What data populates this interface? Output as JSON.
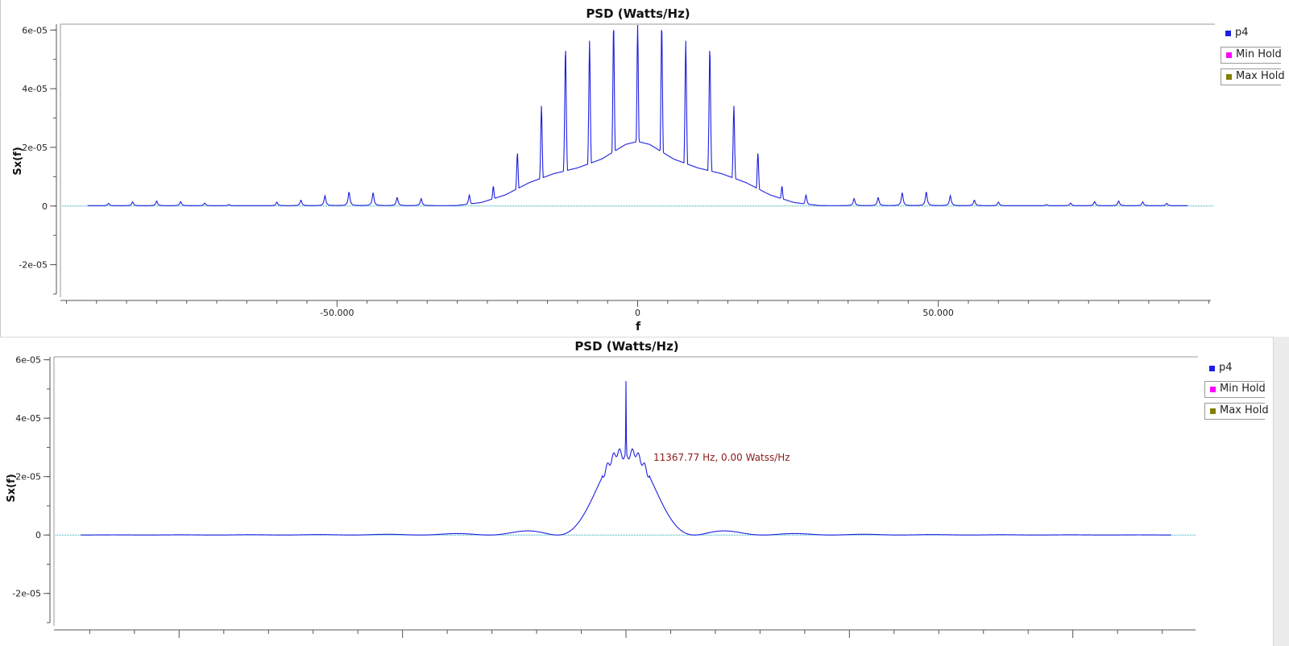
{
  "colors": {
    "trace": "#1f1fe0",
    "baseline": "#1aa8b4",
    "min_hold": "#ff00ff",
    "max_hold": "#808000",
    "marker_text": "#8b1a1a",
    "axis": "#555555"
  },
  "chart_data": [
    {
      "type": "line",
      "title": "PSD (Watts/Hz)",
      "xlabel": "f",
      "ylabel": "Sx(f)",
      "xlim": [
        -96,
        96
      ],
      "ylim": [
        -3e-05,
        6.2e-05
      ],
      "yticks": [
        -2e-05,
        0,
        2e-05,
        4e-05,
        6e-05
      ],
      "ytick_labels": [
        "-2e-05",
        "0",
        "2e-05",
        "4e-05",
        "6e-05"
      ],
      "xticks": [
        -50,
        0,
        50
      ],
      "xtick_labels": [
        "-50.000",
        "0",
        "50.000"
      ],
      "legend": [
        "p4",
        "Min Hold",
        "Max Hold"
      ],
      "legend_position": "right",
      "series": [
        {
          "name": "p4",
          "kind": "comb",
          "comb_spacing": 4,
          "floor": 5e-07,
          "peaks": [
            [
              -92,
              3e-07
            ],
            [
              -88,
              8e-07
            ],
            [
              -84,
              1.3e-06
            ],
            [
              -80,
              1.6e-06
            ],
            [
              -76,
              1.4e-06
            ],
            [
              -72,
              9e-07
            ],
            [
              -68,
              4e-07
            ],
            [
              -60,
              1.2e-06
            ],
            [
              -56,
              1.9e-06
            ],
            [
              -52,
              3.4e-06
            ],
            [
              -48,
              4.7e-06
            ],
            [
              -44,
              4.4e-06
            ],
            [
              -40,
              2.8e-06
            ],
            [
              -36,
              2.4e-06
            ],
            [
              -28,
              3.6e-06
            ],
            [
              -24,
              6.6e-06
            ],
            [
              -20,
              1.8e-05
            ],
            [
              -16,
              3.4e-05
            ],
            [
              -12,
              5.4e-05
            ],
            [
              -8,
              5.6e-05
            ],
            [
              -4,
              6.2e-05
            ],
            [
              0,
              6.2e-05
            ],
            [
              4,
              6.2e-05
            ],
            [
              8,
              5.6e-05
            ],
            [
              12,
              5.4e-05
            ],
            [
              16,
              3.4e-05
            ],
            [
              20,
              1.8e-05
            ],
            [
              24,
              6.6e-06
            ],
            [
              28,
              3.6e-06
            ],
            [
              36,
              2.4e-06
            ],
            [
              40,
              2.8e-06
            ],
            [
              44,
              4.4e-06
            ],
            [
              48,
              4.7e-06
            ],
            [
              52,
              3.4e-06
            ],
            [
              56,
              1.9e-06
            ],
            [
              60,
              1.2e-06
            ],
            [
              68,
              4e-07
            ],
            [
              72,
              9e-07
            ],
            [
              76,
              1.4e-06
            ],
            [
              80,
              1.6e-06
            ],
            [
              84,
              1.3e-06
            ],
            [
              88,
              8e-07
            ],
            [
              92,
              3e-07
            ]
          ],
          "envelope": [
            [
              -30,
              2e-07
            ],
            [
              -26,
              1.2e-06
            ],
            [
              -22,
              3.8e-06
            ],
            [
              -18,
              8e-06
            ],
            [
              -14,
              1.1e-05
            ],
            [
              -10,
              1.3e-05
            ],
            [
              -6,
              1.6e-05
            ],
            [
              -2,
              2.1e-05
            ],
            [
              0,
              2.2e-05
            ],
            [
              2,
              2.1e-05
            ],
            [
              6,
              1.6e-05
            ],
            [
              10,
              1.3e-05
            ],
            [
              14,
              1.1e-05
            ],
            [
              18,
              8e-06
            ],
            [
              22,
              3.8e-06
            ],
            [
              26,
              1.2e-06
            ],
            [
              30,
              2e-07
            ]
          ]
        }
      ]
    },
    {
      "type": "line",
      "title": "PSD (Watts/Hz)",
      "xlabel": "",
      "ylabel": "Sx(f)",
      "xlim": [
        -96,
        96
      ],
      "ylim": [
        -3e-05,
        6.1e-05
      ],
      "yticks": [
        -2e-05,
        0,
        2e-05,
        4e-05,
        6e-05
      ],
      "ytick_labels": [
        "-2e-05",
        "0",
        "2e-05",
        "4e-05",
        "6e-05"
      ],
      "xticks": [
        -75,
        -37.5,
        0,
        37.5,
        75
      ],
      "xtick_labels": [],
      "legend": [
        "p4",
        "Min Hold",
        "Max Hold"
      ],
      "legend_position": "right",
      "annotation": "11367.77 Hz, 0.00 Watss/Hz",
      "series": [
        {
          "name": "p4",
          "kind": "sinc",
          "main_lobe_width": 11.5,
          "main_lobe_peak": 3e-05,
          "spike": [
            0,
            5.5e-05
          ],
          "sidelobes": [
            [
              -22.5,
              1.4e-06
            ],
            [
              22.5,
              1.4e-06
            ],
            [
              -33,
              4e-07
            ],
            [
              33,
              4e-07
            ],
            [
              -44,
              2e-07
            ],
            [
              44,
              2e-07
            ],
            [
              -54,
              1e-07
            ],
            [
              54,
              1e-07
            ]
          ]
        }
      ]
    }
  ]
}
